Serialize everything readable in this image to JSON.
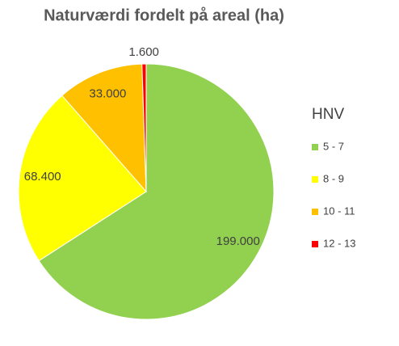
{
  "chart_data": {
    "type": "pie",
    "title": "Naturværdi fordelt på areal (ha)",
    "legend_title": "HNV",
    "categories": [
      "5 - 7",
      "8 - 9",
      "10 - 11",
      "12 - 13"
    ],
    "values": [
      199000,
      68400,
      33000,
      1600
    ],
    "value_labels": [
      "199.000",
      "68.400",
      "33.000",
      "1.600"
    ],
    "colors": [
      "#92d050",
      "#ffff00",
      "#ffc000",
      "#ff0000"
    ],
    "legend": "right"
  }
}
